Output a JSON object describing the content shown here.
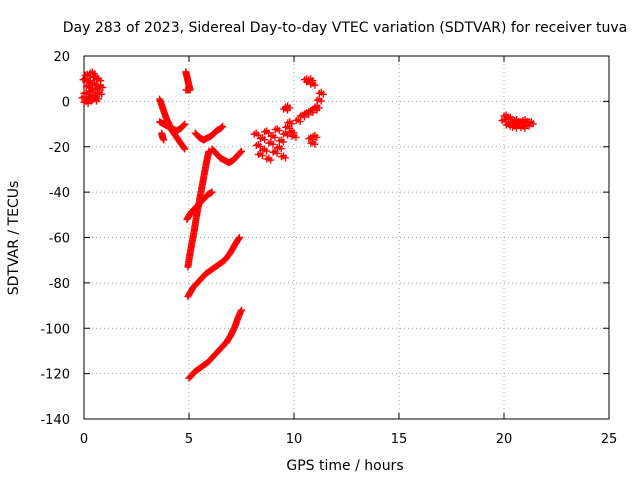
{
  "chart_data": {
    "type": "scatter",
    "title": "Day 283 of 2023, Sidereal Day-to-day VTEC variation (SDTVAR) for receiver tuva",
    "xlabel": "GPS time / hours",
    "ylabel": "SDTVAR / TECUs",
    "xlim": [
      0,
      25
    ],
    "ylim": [
      -140,
      20
    ],
    "x_ticks": [
      0,
      5,
      10,
      15,
      20,
      25
    ],
    "y_ticks": [
      -140,
      -120,
      -100,
      -80,
      -60,
      -40,
      -20,
      0,
      20
    ],
    "x_tick_labels": [
      "0",
      "5",
      "10",
      "15",
      "20",
      "25"
    ],
    "y_tick_labels": [
      "-140",
      "-120",
      "-100",
      "-80",
      "-60",
      "-40",
      "-20",
      "0",
      "20"
    ],
    "grid": true,
    "marker": "+",
    "series_color": "#ff0000",
    "segments": [
      {
        "name": "cluster-0h",
        "points": [
          [
            0.0,
            2
          ],
          [
            0.05,
            10
          ],
          [
            0.1,
            4
          ],
          [
            0.15,
            12
          ],
          [
            0.2,
            7
          ],
          [
            0.25,
            1
          ],
          [
            0.3,
            9
          ],
          [
            0.35,
            5
          ],
          [
            0.4,
            13
          ],
          [
            0.45,
            3
          ],
          [
            0.5,
            8
          ],
          [
            0.55,
            11
          ],
          [
            0.6,
            2
          ],
          [
            0.65,
            6
          ],
          [
            0.7,
            10
          ],
          [
            0.75,
            4
          ],
          [
            0.8,
            7
          ],
          [
            0.1,
            0
          ],
          [
            0.3,
            2
          ],
          [
            0.5,
            1
          ]
        ]
      },
      {
        "name": "trace-3.8-a",
        "points": [
          [
            3.6,
            1
          ],
          [
            3.75,
            -3
          ],
          [
            3.9,
            -7
          ],
          [
            4.05,
            -10
          ],
          [
            4.2,
            -13
          ],
          [
            4.35,
            -15
          ],
          [
            4.5,
            -17
          ],
          [
            4.65,
            -19
          ],
          [
            4.8,
            -21
          ]
        ]
      },
      {
        "name": "trace-3.8-b",
        "points": [
          [
            3.6,
            -9
          ],
          [
            3.8,
            -10
          ],
          [
            4.0,
            -11
          ],
          [
            4.2,
            -12
          ],
          [
            4.4,
            -13
          ],
          [
            4.6,
            -12
          ],
          [
            4.8,
            -10
          ]
        ]
      },
      {
        "name": "trace-3.8-c",
        "points": [
          [
            3.7,
            -14
          ],
          [
            3.75,
            -16
          ],
          [
            3.8,
            -17
          ]
        ]
      },
      {
        "name": "trace-4.9",
        "points": [
          [
            4.85,
            13
          ],
          [
            4.9,
            11
          ],
          [
            4.95,
            9
          ],
          [
            5.0,
            7
          ],
          [
            5.05,
            5
          ],
          [
            4.85,
            5
          ]
        ]
      },
      {
        "name": "trace-5.3",
        "points": [
          [
            5.3,
            -14
          ],
          [
            5.5,
            -16
          ],
          [
            5.7,
            -17
          ],
          [
            5.9,
            -16
          ],
          [
            6.1,
            -15
          ],
          [
            6.3,
            -13
          ],
          [
            6.5,
            -12
          ],
          [
            6.6,
            -11
          ]
        ]
      },
      {
        "name": "trace-6.1-down",
        "points": [
          [
            6.1,
            -21
          ],
          [
            6.3,
            -23
          ],
          [
            6.5,
            -25
          ],
          [
            6.7,
            -26
          ],
          [
            6.9,
            -27
          ],
          [
            7.1,
            -26
          ],
          [
            7.3,
            -24
          ],
          [
            7.5,
            -22
          ]
        ]
      },
      {
        "name": "line-steep",
        "points": [
          [
            4.95,
            -73
          ],
          [
            5.05,
            -67
          ],
          [
            5.15,
            -62
          ],
          [
            5.25,
            -57
          ],
          [
            5.35,
            -51
          ],
          [
            5.45,
            -46
          ],
          [
            5.55,
            -41
          ],
          [
            5.65,
            -36
          ],
          [
            5.75,
            -31
          ],
          [
            5.85,
            -26
          ],
          [
            5.95,
            -22
          ]
        ]
      },
      {
        "name": "line-mid-1",
        "points": [
          [
            4.9,
            -52
          ],
          [
            5.1,
            -49
          ],
          [
            5.3,
            -47
          ],
          [
            5.5,
            -45
          ],
          [
            5.7,
            -43
          ],
          [
            5.9,
            -41
          ],
          [
            6.1,
            -40
          ]
        ]
      },
      {
        "name": "line-mid-2",
        "points": [
          [
            4.95,
            -86
          ],
          [
            5.2,
            -82
          ],
          [
            5.5,
            -79
          ],
          [
            5.8,
            -76
          ],
          [
            6.1,
            -74
          ],
          [
            6.4,
            -72
          ],
          [
            6.7,
            -70
          ],
          [
            6.95,
            -67
          ],
          [
            7.2,
            -63
          ],
          [
            7.4,
            -60
          ]
        ]
      },
      {
        "name": "line-low",
        "points": [
          [
            5.0,
            -122
          ],
          [
            5.3,
            -119
          ],
          [
            5.6,
            -117
          ],
          [
            5.9,
            -115
          ],
          [
            6.2,
            -112
          ],
          [
            6.5,
            -109
          ],
          [
            6.8,
            -106
          ],
          [
            7.0,
            -103
          ],
          [
            7.2,
            -99
          ],
          [
            7.35,
            -95
          ],
          [
            7.5,
            -92
          ]
        ]
      },
      {
        "name": "cluster-8.5h",
        "points": [
          [
            8.2,
            -14
          ],
          [
            8.3,
            -19
          ],
          [
            8.4,
            -23
          ],
          [
            8.5,
            -16
          ],
          [
            8.6,
            -21
          ],
          [
            8.7,
            -13
          ],
          [
            8.8,
            -25
          ],
          [
            8.9,
            -18
          ],
          [
            9.0,
            -15
          ],
          [
            9.1,
            -22
          ],
          [
            9.2,
            -12
          ],
          [
            9.3,
            -20
          ],
          [
            9.4,
            -17
          ],
          [
            9.5,
            -24
          ],
          [
            9.6,
            -14
          ],
          [
            9.7,
            -11
          ],
          [
            9.8,
            -9
          ],
          [
            9.9,
            -13
          ],
          [
            10.0,
            -15
          ],
          [
            10.2,
            -8
          ],
          [
            10.4,
            -6
          ],
          [
            10.6,
            -5
          ],
          [
            10.8,
            -4
          ],
          [
            11.0,
            -3
          ],
          [
            11.1,
            -2
          ],
          [
            9.6,
            -3
          ],
          [
            9.7,
            -2
          ],
          [
            10.8,
            -16
          ],
          [
            10.9,
            -18
          ],
          [
            11.0,
            -15
          ]
        ]
      },
      {
        "name": "cluster-10.8h",
        "points": [
          [
            10.6,
            10
          ],
          [
            10.7,
            9
          ],
          [
            10.8,
            10
          ],
          [
            10.9,
            8
          ],
          [
            11.3,
            4
          ],
          [
            11.2,
            1
          ]
        ]
      },
      {
        "name": "cluster-20.5h",
        "points": [
          [
            20.0,
            -8
          ],
          [
            20.1,
            -6
          ],
          [
            20.2,
            -10
          ],
          [
            20.3,
            -7
          ],
          [
            20.4,
            -9
          ],
          [
            20.5,
            -11
          ],
          [
            20.6,
            -8
          ],
          [
            20.7,
            -10
          ],
          [
            20.8,
            -9
          ],
          [
            20.9,
            -11
          ],
          [
            21.0,
            -8
          ],
          [
            21.1,
            -10
          ],
          [
            21.2,
            -9
          ],
          [
            21.3,
            -9
          ]
        ]
      }
    ]
  }
}
